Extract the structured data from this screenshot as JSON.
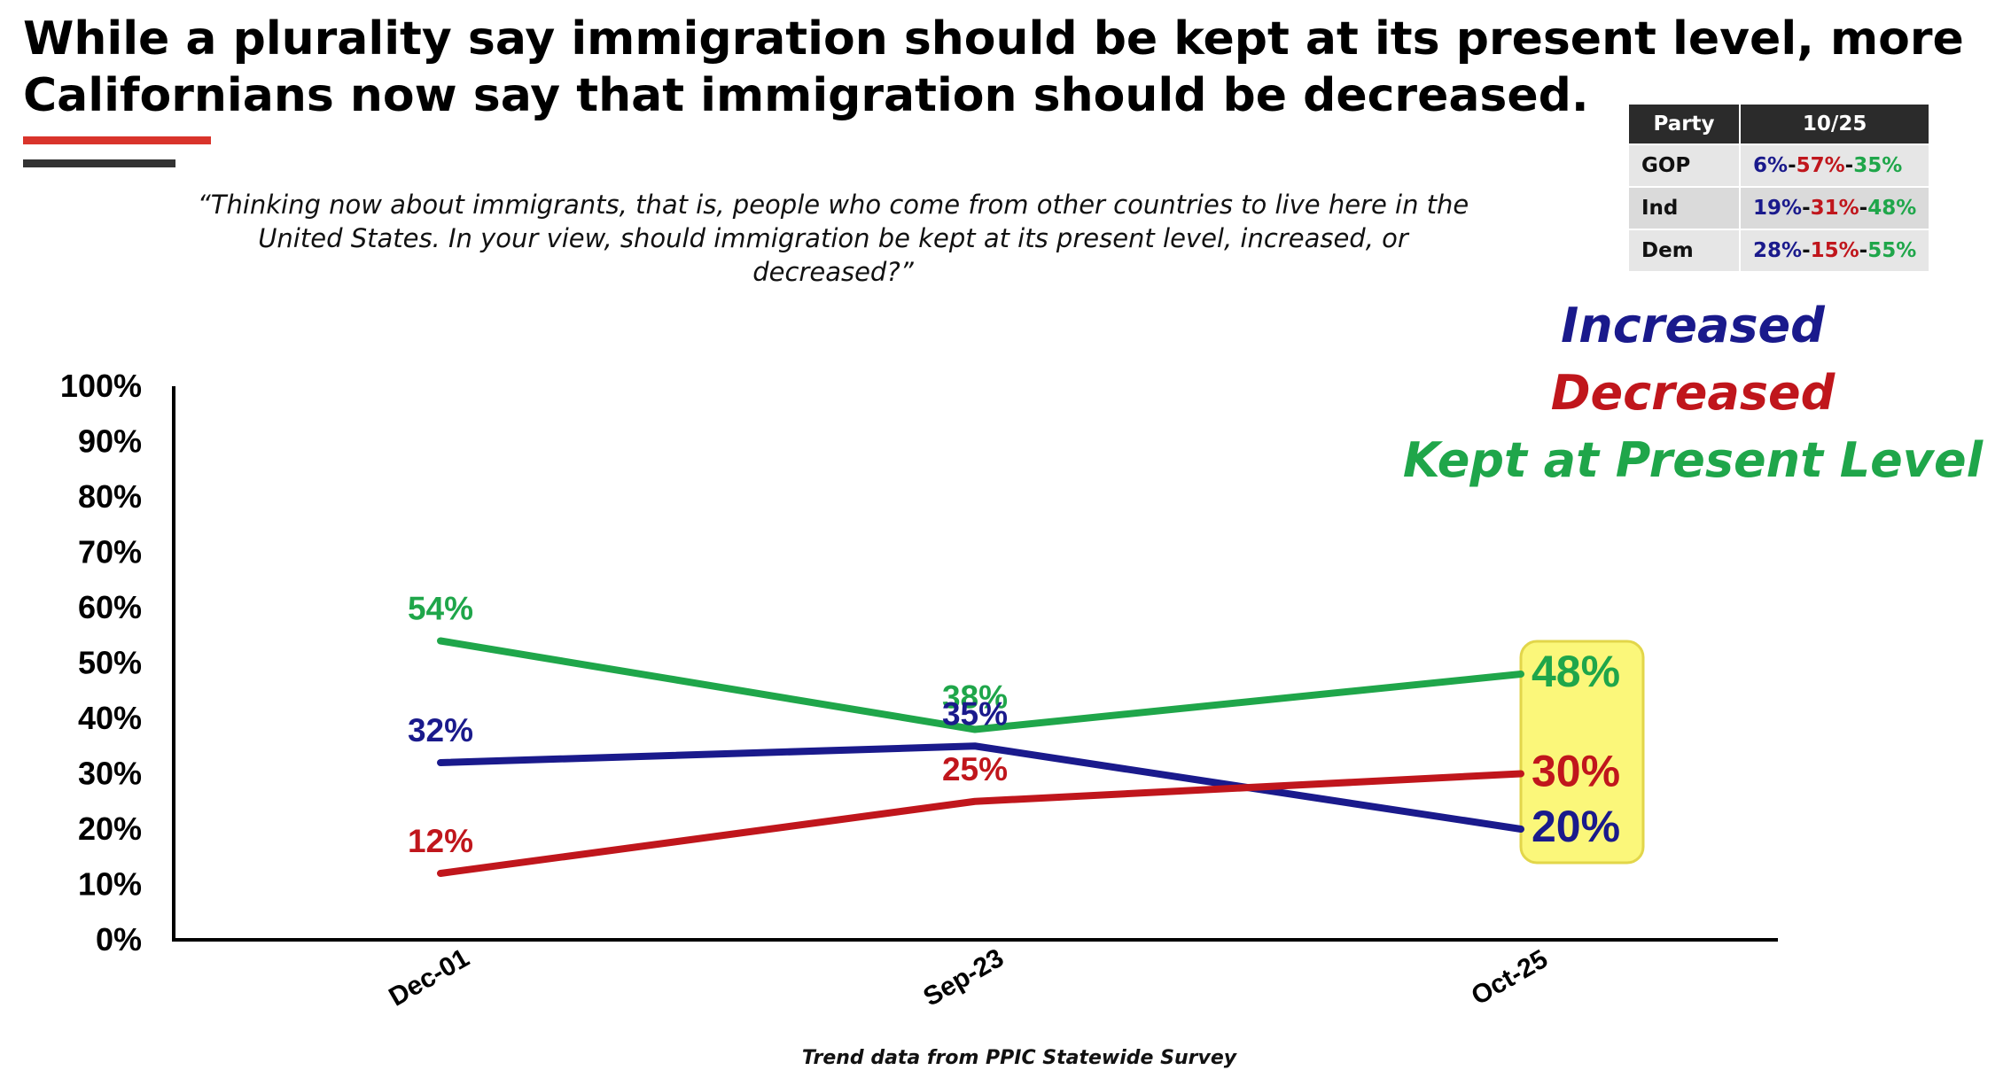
{
  "title": "While a plurality say immigration should be kept at its present level, more Californians now say that immigration should be decreased.",
  "question": "“Thinking now about immigrants, that is, people who come from other countries to live here in the United States. In your view, should immigration be kept at its present level, increased, or decreased?”",
  "source": "Trend data from PPIC Statewide Survey",
  "colors": {
    "increased": "#1a1a8c",
    "decreased": "#c0161c",
    "kept": "#1fa64a",
    "highlight": "#fbf77a"
  },
  "party_table": {
    "headers": [
      "Party",
      "10/25"
    ],
    "rows": [
      {
        "party": "GOP",
        "increased": "6%",
        "decreased": "57%",
        "kept": "35%"
      },
      {
        "party": "Ind",
        "increased": "19%",
        "decreased": "31%",
        "kept": "48%"
      },
      {
        "party": "Dem",
        "increased": "28%",
        "decreased": "15%",
        "kept": "55%"
      }
    ]
  },
  "legend": {
    "increased": "Increased",
    "decreased": "Decreased",
    "kept": "Kept at Present Level"
  },
  "chart_data": {
    "type": "line",
    "categories": [
      "Dec-01",
      "Sep-23",
      "Oct-25"
    ],
    "ylim": [
      0,
      100
    ],
    "yticks": [
      "0%",
      "10%",
      "20%",
      "30%",
      "40%",
      "50%",
      "60%",
      "70%",
      "80%",
      "90%",
      "100%"
    ],
    "grid": false,
    "legend_position": "top-right",
    "series": [
      {
        "name": "Kept at Present Level",
        "key": "kept",
        "values": [
          54,
          38,
          48
        ],
        "labels": [
          "54%",
          "38%",
          "48%"
        ]
      },
      {
        "name": "Increased",
        "key": "increased",
        "values": [
          32,
          35,
          20
        ],
        "labels": [
          "32%",
          "35%",
          "20%"
        ]
      },
      {
        "name": "Decreased",
        "key": "decreased",
        "values": [
          12,
          25,
          30
        ],
        "labels": [
          "12%",
          "25%",
          "30%"
        ]
      }
    ],
    "highlighted_category": "Oct-25"
  }
}
